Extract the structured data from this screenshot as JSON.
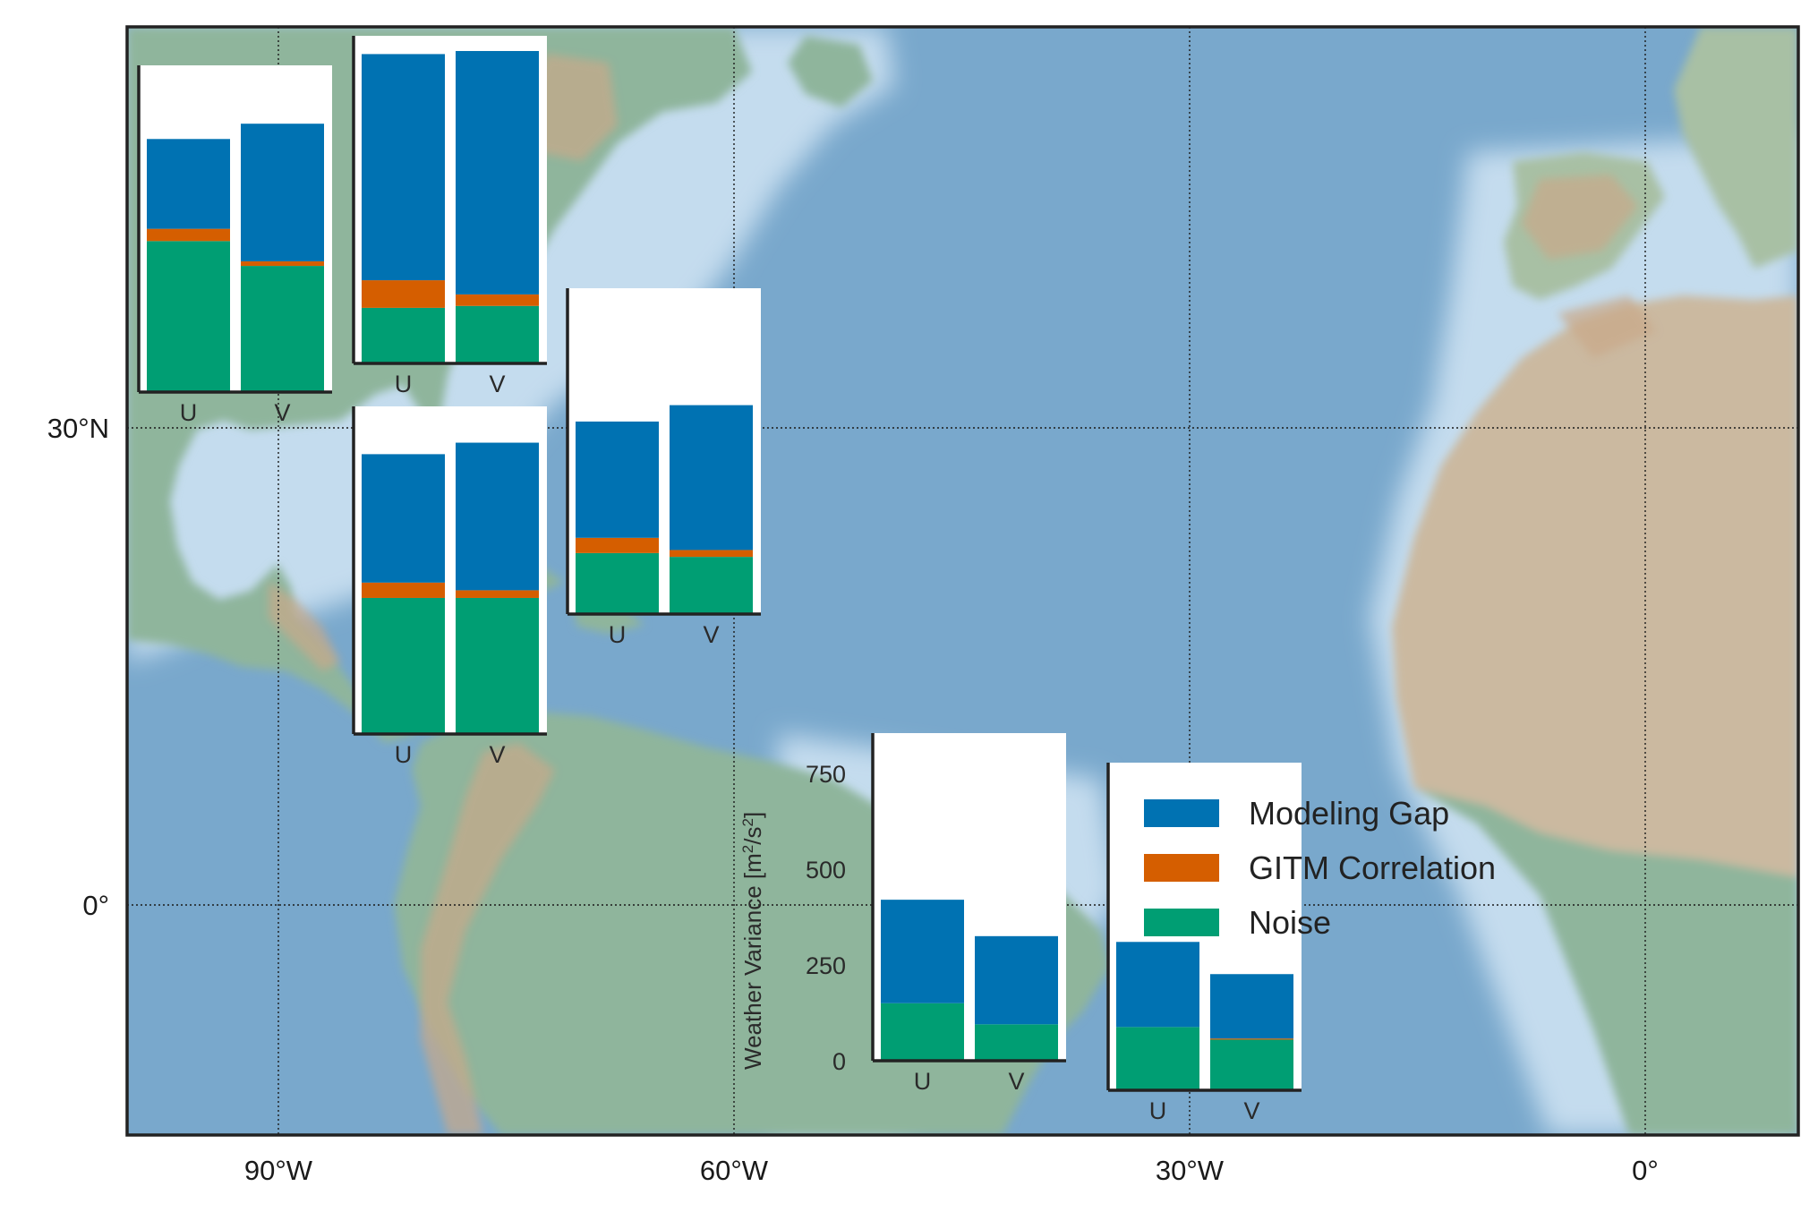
{
  "colors": {
    "modeling_gap": "#0072B2",
    "gitm_correlation": "#D55E00",
    "noise": "#009E73",
    "ocean": "#79a8cc",
    "shallow_water": "#c4dcee",
    "land": "#8fb59c",
    "desert": "#cbb9a0",
    "mountain": "#c9a989",
    "grid": "#1a1a1a"
  },
  "map": {
    "lon_range": [
      -100,
      10
    ],
    "lat_range": [
      -15,
      45
    ],
    "lon_ticks": [
      {
        "value": -90,
        "label": "90°W"
      },
      {
        "value": -60,
        "label": "60°W"
      },
      {
        "value": -30,
        "label": "30°W"
      },
      {
        "value": 0,
        "label": "0°"
      }
    ],
    "lat_ticks": [
      {
        "value": 30,
        "label": "30°N"
      },
      {
        "value": 0,
        "label": "0°"
      }
    ]
  },
  "chart_data": {
    "type": "bar",
    "stacked": true,
    "categories": [
      "U",
      "V"
    ],
    "ylabel_text": "Weather Variance [m",
    "ylabel_sup": "2",
    "ylabel_mid": "/s",
    "ylabel_sup2": "2",
    "ylabel_end": "]",
    "ylim": [
      0,
      850
    ],
    "yticks": [
      0,
      250,
      500,
      750
    ],
    "legend": [
      "Modeling Gap",
      "GITM Correlation",
      "Noise"
    ],
    "panels": [
      {
        "id": "A",
        "noise": [
          395,
          330
        ],
        "gitm_correlation": [
          32,
          12
        ],
        "modeling_gap": [
          235,
          360
        ]
      },
      {
        "id": "B",
        "noise": [
          145,
          150
        ],
        "gitm_correlation": [
          72,
          30
        ],
        "modeling_gap": [
          590,
          635
        ]
      },
      {
        "id": "C",
        "noise": [
          160,
          150
        ],
        "gitm_correlation": [
          40,
          18
        ],
        "modeling_gap": [
          305,
          380
        ]
      },
      {
        "id": "D",
        "noise": [
          355,
          355
        ],
        "gitm_correlation": [
          40,
          20
        ],
        "modeling_gap": [
          335,
          385
        ]
      },
      {
        "id": "E",
        "noise": [
          150,
          95
        ],
        "gitm_correlation": [
          0,
          0
        ],
        "modeling_gap": [
          270,
          230
        ]
      },
      {
        "id": "F",
        "noise": [
          165,
          132
        ],
        "gitm_correlation": [
          0,
          3
        ],
        "modeling_gap": [
          222,
          168
        ]
      }
    ]
  }
}
